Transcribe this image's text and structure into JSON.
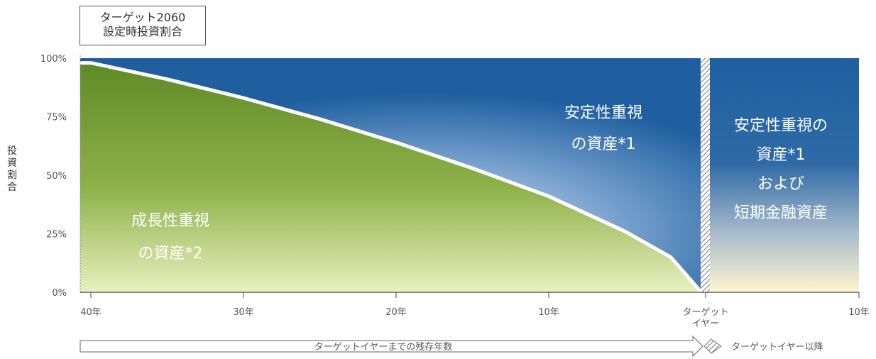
{
  "chart_data": {
    "type": "area",
    "title_lines": [
      "ターゲット2060",
      "設定時投資割合"
    ],
    "ylabel": "投資割合",
    "y_ticks": [
      "100%",
      "75%",
      "50%",
      "25%",
      "0%"
    ],
    "ylim": [
      0,
      100
    ],
    "x_ticks": [
      "40年",
      "30年",
      "20年",
      "10年",
      "ターゲット\nイヤー",
      "10年"
    ],
    "series": [
      {
        "name": "成長性重視の資産*2",
        "x": [
          40,
          35,
          30,
          25,
          20,
          15,
          10,
          5,
          2,
          0
        ],
        "y": [
          98,
          91,
          83,
          74,
          64,
          53,
          41,
          26,
          15,
          0
        ]
      }
    ],
    "regions": {
      "growth_label": [
        "成長性重視",
        "の資産*2"
      ],
      "stable_label": [
        "安定性重視",
        "の資産*1"
      ],
      "after_label": [
        "安定性重視の",
        "資産*1",
        "および",
        "短期金融資産"
      ]
    },
    "arrow_before": "ターゲットイヤーまでの残存年数",
    "arrow_after": "ターゲットイヤー以降",
    "colors": {
      "growth_dark": "#5e8a26",
      "growth_light": "#e8f0c0",
      "stable_dark": "#1f5fa0",
      "stable_light": "#dfe8ee",
      "after_light": "#fff6cf"
    }
  }
}
